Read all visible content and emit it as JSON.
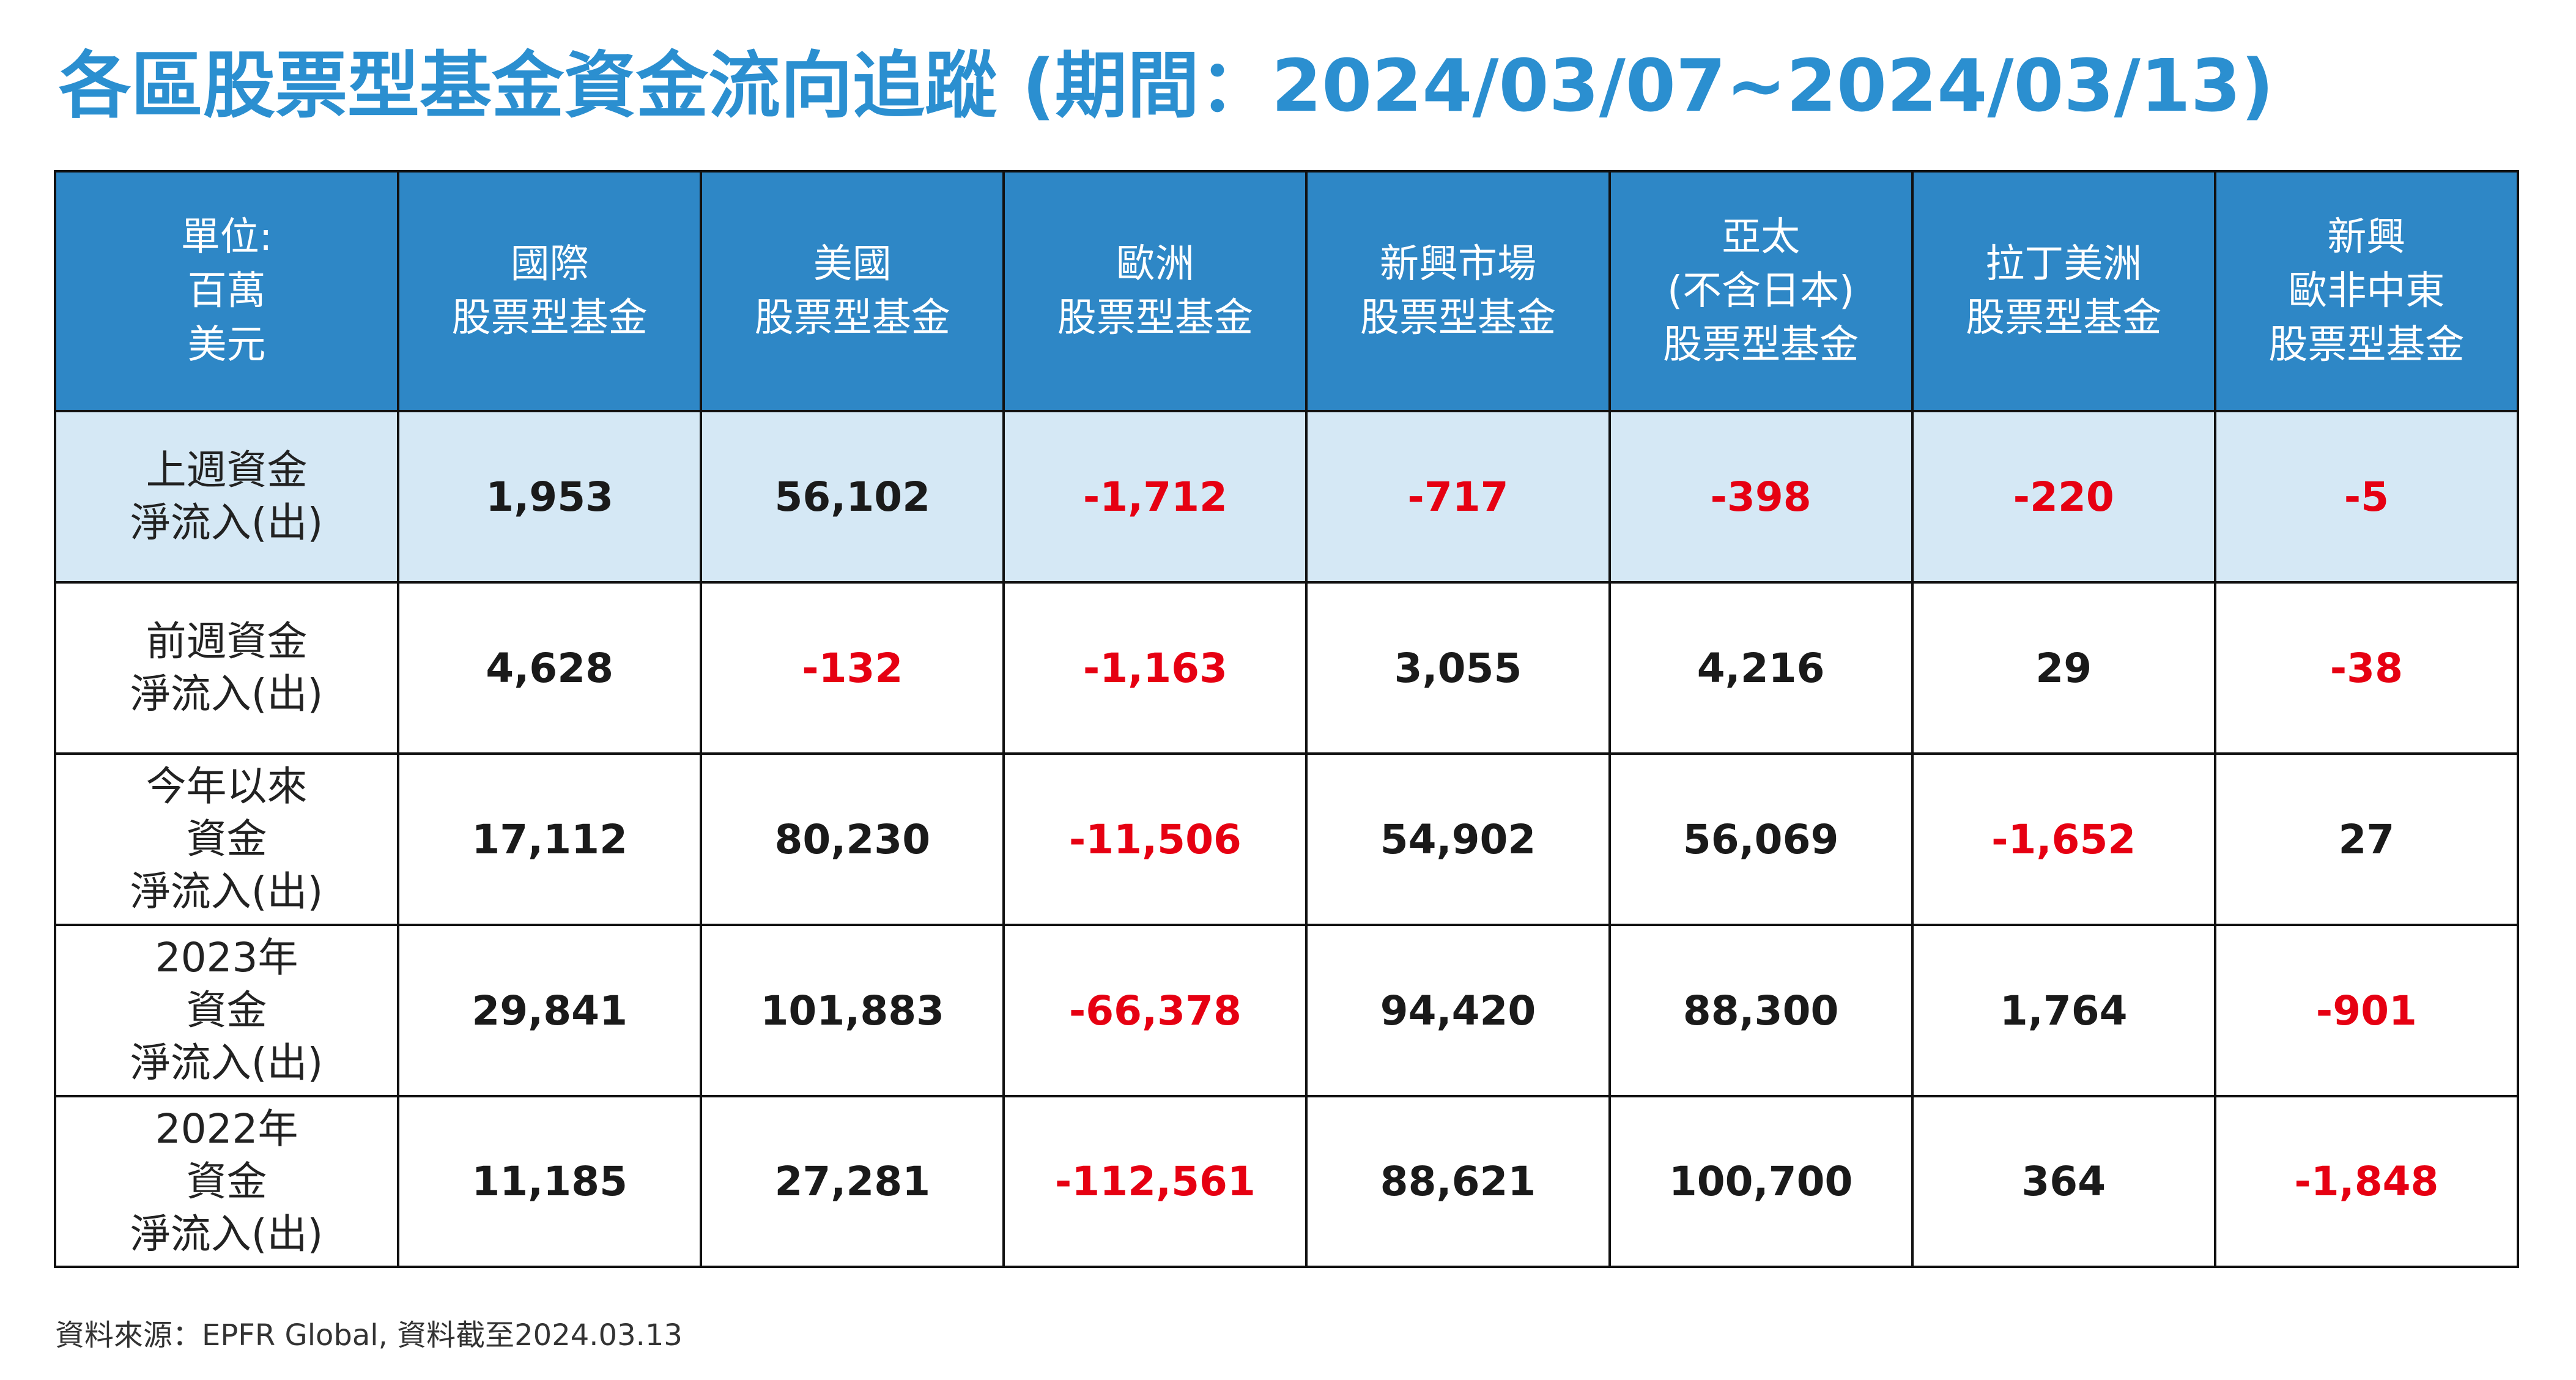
{
  "title": "各區股票型基金資金流向追蹤 (期間：2024/03/07~2024/03/13)",
  "table": {
    "unit_label": [
      "單位:",
      "百萬",
      "美元"
    ],
    "columns": [
      {
        "id": "international",
        "lines": [
          "國際",
          "股票型基金"
        ]
      },
      {
        "id": "us",
        "lines": [
          "美國",
          "股票型基金"
        ]
      },
      {
        "id": "europe",
        "lines": [
          "歐洲",
          "股票型基金"
        ]
      },
      {
        "id": "emerging",
        "lines": [
          "新興市場",
          "股票型基金"
        ]
      },
      {
        "id": "asia-pacific",
        "lines": [
          "亞太",
          "(不含日本)",
          "股票型基金"
        ]
      },
      {
        "id": "latin-america",
        "lines": [
          "拉丁美洲",
          "股票型基金"
        ]
      },
      {
        "id": "emea",
        "lines": [
          "新興",
          "歐非中東",
          "股票型基金"
        ]
      }
    ],
    "rows": [
      {
        "label_lines": [
          "上週資金",
          "淨流入(出)"
        ],
        "highlight": true,
        "values": [
          "1,953",
          "56,102",
          "-1,712",
          "-717",
          "-398",
          "-220",
          "-5"
        ]
      },
      {
        "label_lines": [
          "前週資金",
          "淨流入(出)"
        ],
        "highlight": false,
        "values": [
          "4,628",
          "-132",
          "-1,163",
          "3,055",
          "4,216",
          "29",
          "-38"
        ]
      },
      {
        "label_lines": [
          "今年以來",
          "資金",
          "淨流入(出)"
        ],
        "highlight": false,
        "values": [
          "17,112",
          "80,230",
          "-11,506",
          "54,902",
          "56,069",
          "-1,652",
          "27"
        ]
      },
      {
        "label_lines": [
          "2023年",
          "資金",
          "淨流入(出)"
        ],
        "highlight": false,
        "values": [
          "29,841",
          "101,883",
          "-66,378",
          "94,420",
          "88,300",
          "1,764",
          "-901"
        ]
      },
      {
        "label_lines": [
          "2022年",
          "資金",
          "淨流入(出)"
        ],
        "highlight": false,
        "values": [
          "11,185",
          "27,281",
          "-112,561",
          "88,621",
          "100,700",
          "364",
          "-1,848"
        ]
      }
    ]
  },
  "source_note": "資料來源：EPFR Global, 資料截至2024.03.13",
  "colors": {
    "title": "#2b8fd0",
    "header_bg": "#2e87c6",
    "header_text": "#ffffff",
    "highlight_row_bg": "#d5e8f5",
    "negative_value": "#e60012",
    "positive_value": "#1a1a1a",
    "border": "#111111"
  }
}
